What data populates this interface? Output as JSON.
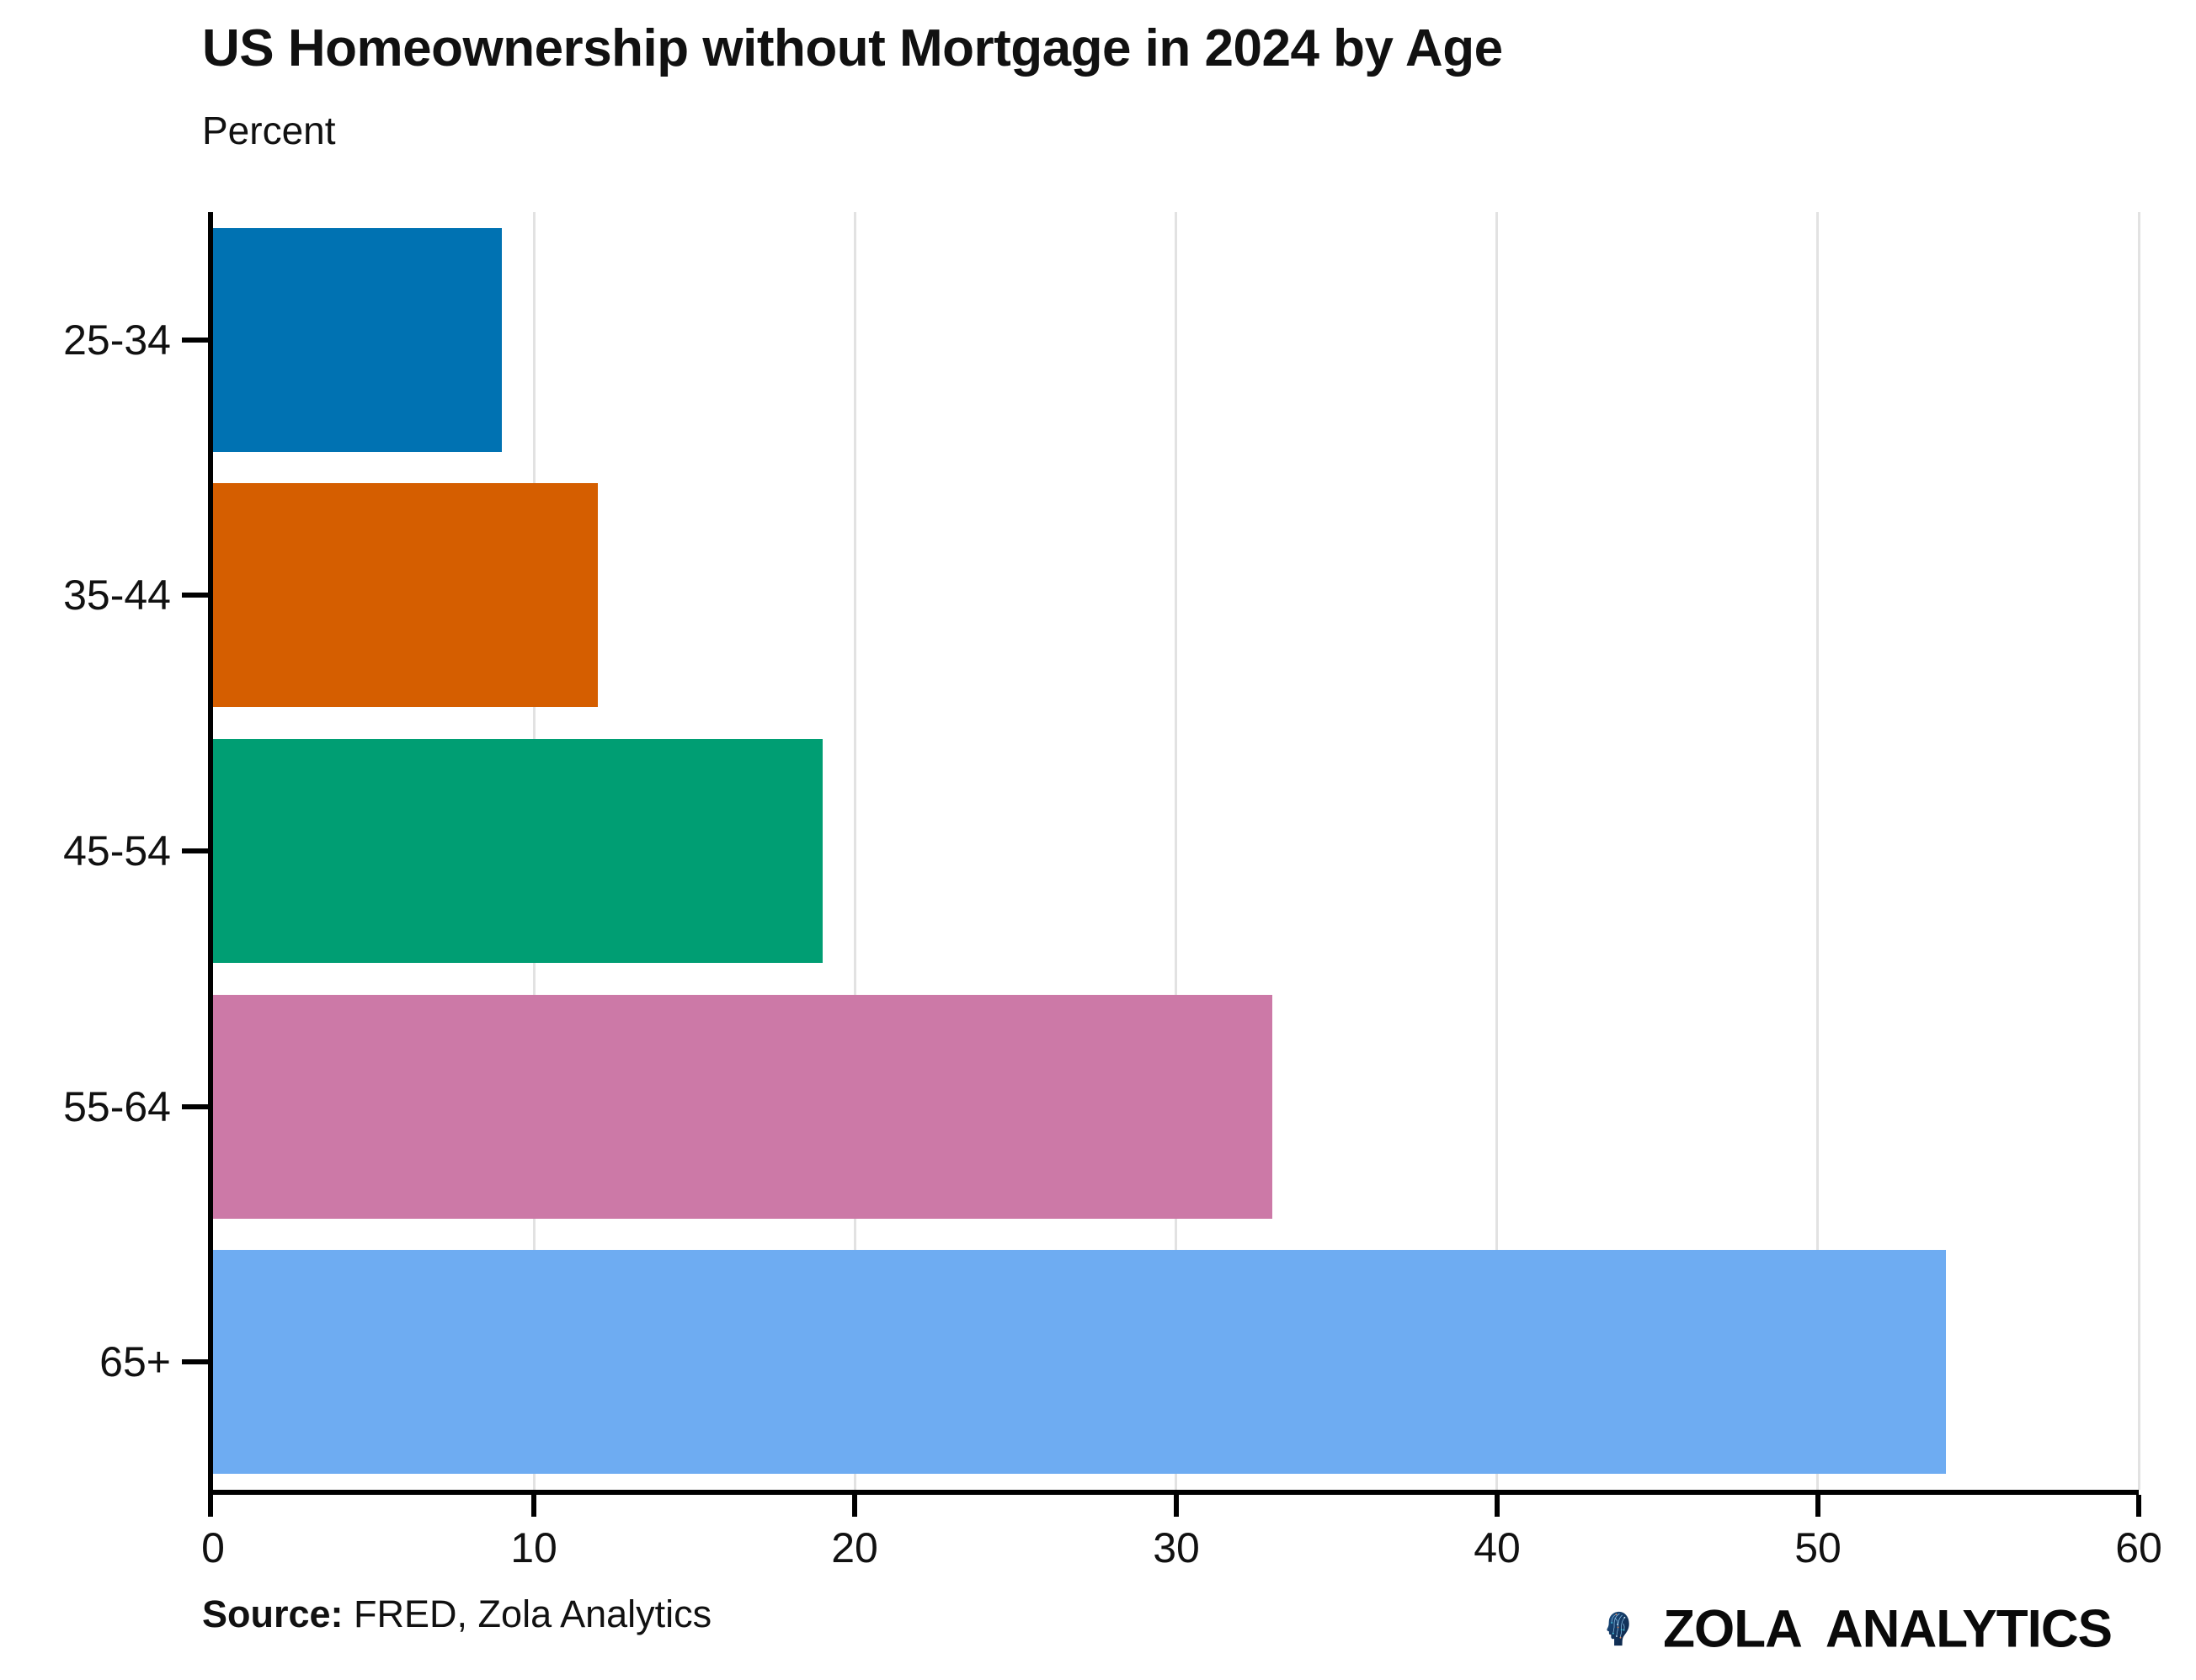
{
  "header": {
    "title": "US Homeownership without Mortgage in 2024 by Age",
    "subtitle": "Percent"
  },
  "chart_data": {
    "type": "bar",
    "orientation": "horizontal",
    "title": "US Homeownership without Mortgage in 2024 by Age",
    "ylabel_unit": "Percent",
    "categories": [
      "25-34",
      "35-44",
      "45-54",
      "55-64",
      "65+"
    ],
    "values": [
      9,
      12,
      19,
      33,
      54
    ],
    "bar_colors": [
      "#0072B2",
      "#D55E00",
      "#009E73",
      "#CC79A7",
      "#6EACF2"
    ],
    "xlim": [
      0,
      60
    ],
    "x_ticks": [
      0,
      10,
      20,
      30,
      40,
      50,
      60
    ],
    "grid": "vertical",
    "grid_color": "#e2e2e2",
    "axis_color": "#000000",
    "legend": "none"
  },
  "footer": {
    "source_label": "Source:",
    "source_text": " FRED, Zola Analytics",
    "logo_word_1": "ZOLA",
    "logo_word_2": "ANALYTICS",
    "logo_icon": "circuit-head-icon"
  }
}
